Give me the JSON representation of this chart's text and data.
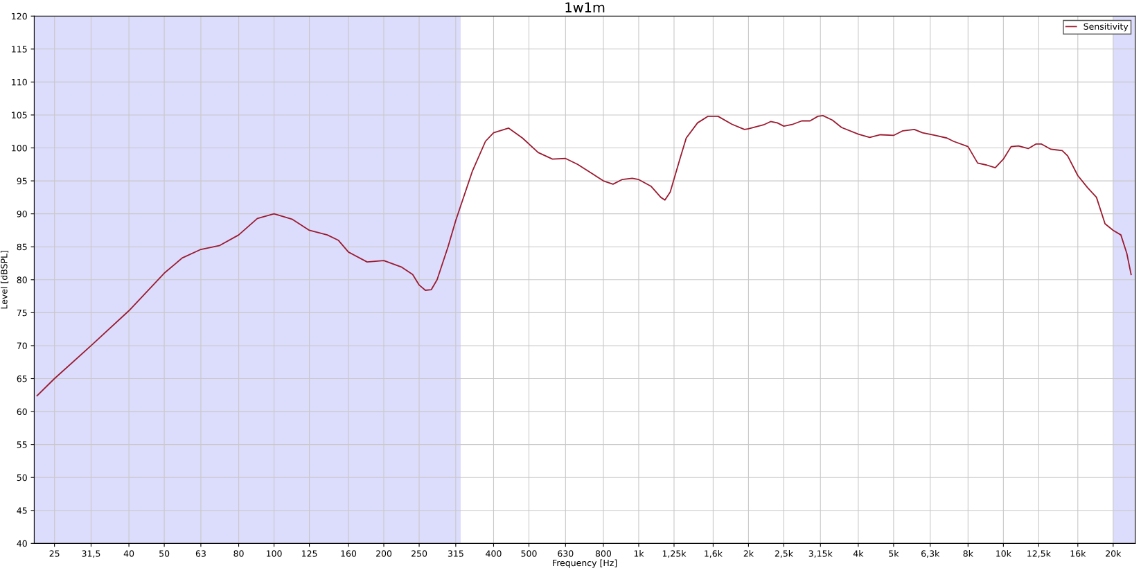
{
  "chart_data": {
    "type": "line",
    "title": "1w1m",
    "xlabel": "Frequency [Hz]",
    "ylabel": "Level [dBSPL]",
    "log": "x",
    "grid": true,
    "legend": "top right",
    "line_style": "solid",
    "marker": "none",
    "xlim": [
      22,
      23000
    ],
    "ylim": [
      40,
      120
    ],
    "xticks": [
      25,
      {
        "value": 31.5,
        "label": "31,5"
      },
      40,
      50,
      63,
      80,
      100,
      125,
      160,
      200,
      250,
      315,
      400,
      500,
      630,
      800,
      {
        "value": 1000,
        "label": "1k"
      },
      {
        "value": 1250,
        "label": "1,25k"
      },
      {
        "value": 1600,
        "label": "1,6k"
      },
      {
        "value": 2000,
        "label": "2k"
      },
      {
        "value": 2500,
        "label": "2,5k"
      },
      {
        "value": 3150,
        "label": "3,15k"
      },
      {
        "value": 4000,
        "label": "4k"
      },
      {
        "value": 5000,
        "label": "5k"
      },
      {
        "value": 6300,
        "label": "6,3k"
      },
      {
        "value": 8000,
        "label": "8k"
      },
      {
        "value": 10000,
        "label": "10k"
      },
      {
        "value": 12500,
        "label": "12,5k"
      },
      {
        "value": 16000,
        "label": "16k"
      },
      {
        "value": 20000,
        "label": "20k"
      }
    ],
    "yticks": [
      40,
      45,
      50,
      55,
      60,
      65,
      70,
      75,
      80,
      85,
      90,
      95,
      100,
      105,
      110,
      115,
      120
    ],
    "bands": [
      {
        "axis": "x",
        "from": 22,
        "to": 325,
        "color": "#dcdcfc"
      },
      {
        "axis": "x",
        "from": 20000,
        "to": 23000,
        "color": "#dcdcfc"
      }
    ],
    "x": [
      22.4,
      25,
      31.5,
      40,
      50,
      56,
      63,
      71,
      80,
      90,
      100,
      112,
      125,
      140,
      150,
      160,
      180,
      200,
      224,
      240,
      250,
      260,
      270,
      280,
      300,
      315,
      350,
      380,
      400,
      440,
      480,
      530,
      580,
      630,
      680,
      750,
      800,
      850,
      900,
      960,
      1000,
      1080,
      1150,
      1180,
      1220,
      1300,
      1350,
      1450,
      1550,
      1650,
      1800,
      1950,
      2000,
      2200,
      2300,
      2400,
      2500,
      2650,
      2800,
      2950,
      3100,
      3200,
      3400,
      3600,
      4000,
      4300,
      4600,
      5000,
      5300,
      5700,
      6000,
      6500,
      7000,
      7300,
      8000,
      8500,
      9000,
      9500,
      10000,
      10500,
      11000,
      11700,
      12300,
      12700,
      13500,
      14500,
      15000,
      16000,
      17000,
      18000,
      19000,
      20000,
      21000,
      21800,
      22400
    ],
    "series": [
      {
        "name": "Sensitivity",
        "color": "#9b1b30",
        "values": [
          62.4,
          65,
          70,
          75.3,
          81,
          83.3,
          84.6,
          85.2,
          86.8,
          89.3,
          90,
          89.2,
          87.5,
          86.8,
          86,
          84.2,
          82.7,
          82.9,
          81.9,
          80.8,
          79.2,
          78.4,
          78.5,
          80,
          85,
          89,
          96.5,
          101,
          102.3,
          103,
          101.5,
          99.3,
          98.3,
          98.4,
          97.5,
          96,
          95,
          94.5,
          95.2,
          95.4,
          95.2,
          94.2,
          92.5,
          92.1,
          93.3,
          98.5,
          101.5,
          103.8,
          104.8,
          104.8,
          103.6,
          102.8,
          102.9,
          103.5,
          104,
          103.8,
          103.3,
          103.6,
          104.1,
          104.1,
          104.8,
          104.9,
          104.2,
          103.1,
          102.1,
          101.6,
          102,
          101.9,
          102.6,
          102.8,
          102.3,
          101.9,
          101.5,
          101,
          100.2,
          97.7,
          97.4,
          97,
          98.3,
          100.2,
          100.3,
          99.9,
          100.6,
          100.6,
          99.8,
          99.6,
          98.8,
          95.8,
          94,
          92.5,
          88.5,
          87.5,
          86.8,
          84,
          80.8
        ]
      }
    ]
  }
}
